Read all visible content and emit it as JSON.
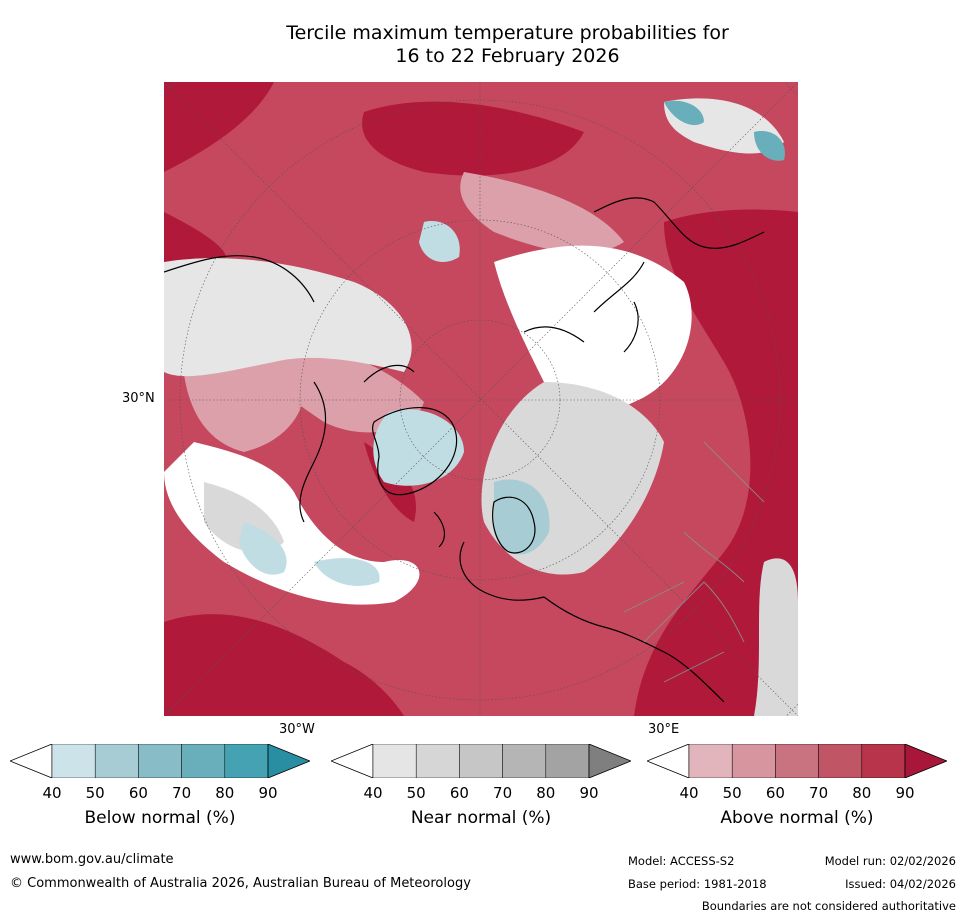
{
  "title_line1": "Tercile maximum temperature probabilities for",
  "title_line2": "16 to 22 February 2026",
  "map": {
    "lat_label": "30°N",
    "lon_label_left": "30°W",
    "lon_label_right": "30°E",
    "description_colors": {
      "above_dark": "#b0193a",
      "above_mid": "#c6485e",
      "above_light": "#dca0aa",
      "near": "#d9d9d9",
      "below": "#bfdde3",
      "coast": "#000000",
      "border": "#8a8a8a"
    }
  },
  "colorbars": [
    {
      "name": "below",
      "label": "Below normal (%)",
      "ticks": [
        "40",
        "50",
        "60",
        "70",
        "80",
        "90"
      ],
      "colors": [
        "#cde3ea",
        "#a8ccd4",
        "#88bcc6",
        "#68aebb",
        "#45a2b3",
        "#2a8ea3"
      ]
    },
    {
      "name": "near",
      "label": "Near normal (%)",
      "ticks": [
        "40",
        "50",
        "60",
        "70",
        "80",
        "90"
      ],
      "colors": [
        "#e5e5e5",
        "#d6d6d6",
        "#c6c6c6",
        "#b5b5b5",
        "#a3a3a3",
        "#7f7f7f"
      ]
    },
    {
      "name": "above",
      "label": "Above normal (%)",
      "ticks": [
        "40",
        "50",
        "60",
        "70",
        "80",
        "90"
      ],
      "colors": [
        "#e2b5bd",
        "#d6959f",
        "#c97380",
        "#c05566",
        "#b7344b",
        "#a8173a"
      ]
    }
  ],
  "footer": {
    "website": "www.bom.gov.au/climate",
    "copyright": "© Commonwealth of Australia 2026, Australian Bureau of Meteorology",
    "model": "Model: ACCESS-S2",
    "base_period": "Base period: 1981-2018",
    "model_run": "Model run: 02/02/2026",
    "issued": "Issued: 04/02/2026",
    "disclaimer": "Boundaries are not considered authoritative"
  }
}
